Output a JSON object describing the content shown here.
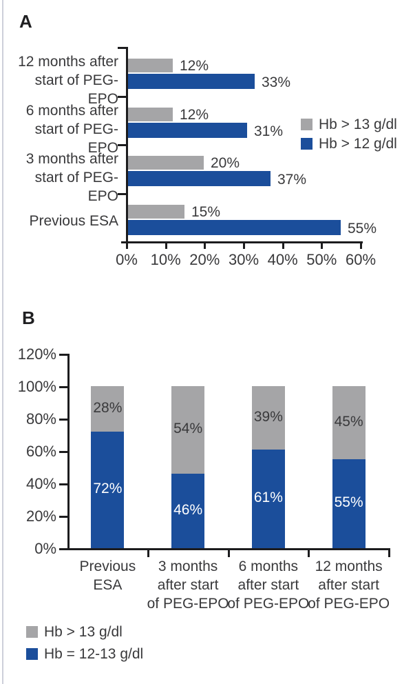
{
  "panels": {
    "a": "A",
    "b": "B"
  },
  "colors": {
    "blue": "#1b4e9b",
    "gray": "#a5a5a7",
    "axis": "#1c1c1e",
    "text": "#39393b"
  },
  "chart_data": [
    {
      "id": "panel-a",
      "type": "bar",
      "orientation": "horizontal",
      "unit": "%",
      "grid": false,
      "categories": [
        [
          "12 months after",
          "start of PEG-EPO"
        ],
        [
          "6 months after",
          "start of PEG-EPO"
        ],
        [
          "3 months after",
          "start of PEG-EPO"
        ],
        [
          "Previous ESA"
        ]
      ],
      "series": [
        {
          "name": "Hb > 13 g/dl",
          "color_key": "gray",
          "values": [
            12,
            12,
            20,
            15
          ]
        },
        {
          "name": "Hb > 12 g/dl",
          "color_key": "blue",
          "values": [
            33,
            31,
            37,
            55
          ]
        }
      ],
      "value_labels": [
        [
          "12%",
          "12%",
          "20%",
          "15%"
        ],
        [
          "33%",
          "31%",
          "37%",
          "55%"
        ]
      ],
      "x_axis": {
        "min": 0,
        "max": 60,
        "tick_step": 10,
        "tick_labels": [
          "0%",
          "10%",
          "20%",
          "30%",
          "40%",
          "50%",
          "60%"
        ]
      },
      "legend": {
        "position": "right",
        "items": [
          {
            "label": "Hb > 13 g/dl",
            "color_key": "gray"
          },
          {
            "label": "Hb > 12 g/dl",
            "color_key": "blue"
          }
        ]
      }
    },
    {
      "id": "panel-b",
      "type": "stacked-bar",
      "orientation": "vertical",
      "unit": "%",
      "grid": false,
      "categories": [
        [
          "Previous ESA"
        ],
        [
          "3 months",
          "after start",
          "of PEG-EPO"
        ],
        [
          "6 months",
          "after start",
          "of PEG-EPO"
        ],
        [
          "12 months",
          "after start",
          "of PEG-EPO"
        ]
      ],
      "series": [
        {
          "name": "Hb = 12-13 g/dl",
          "color_key": "blue",
          "values": [
            72,
            46,
            61,
            55
          ]
        },
        {
          "name": "Hb > 13 g/dl",
          "color_key": "gray",
          "values": [
            28,
            54,
            39,
            45
          ]
        }
      ],
      "value_labels": [
        [
          "72%",
          "46%",
          "61%",
          "55%"
        ],
        [
          "28%",
          "54%",
          "39%",
          "45%"
        ]
      ],
      "y_axis": {
        "min": 0,
        "max": 120,
        "tick_step": 20,
        "tick_labels": [
          "0%",
          "20%",
          "40%",
          "60%",
          "80%",
          "100%",
          "120%"
        ]
      },
      "legend": {
        "position": "bottom",
        "items": [
          {
            "label": "Hb > 13 g/dl",
            "color_key": "gray"
          },
          {
            "label": "Hb = 12-13 g/dl",
            "color_key": "blue"
          }
        ]
      }
    }
  ]
}
